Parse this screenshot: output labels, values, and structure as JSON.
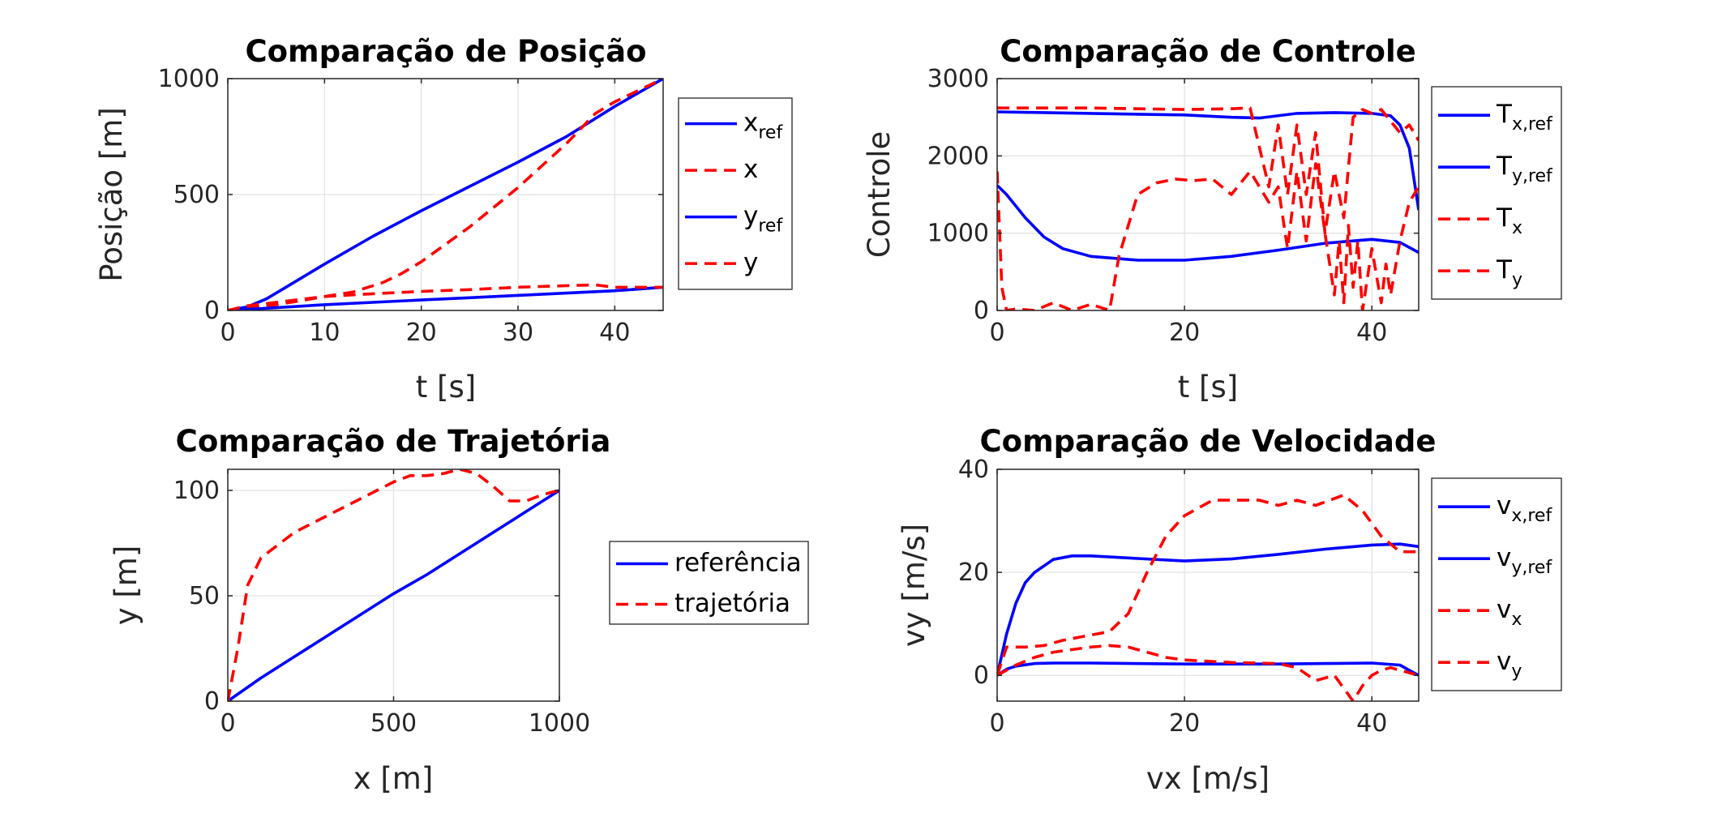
{
  "colors": {
    "reference": "#0000ff",
    "actual": "#ff0000",
    "grid": "#e3e3e3",
    "axis": "#262626"
  },
  "chart_data": [
    {
      "type": "line",
      "title": "Comparação de Posição",
      "xlabel": "t [s]",
      "ylabel": "Posição [m]",
      "xlim": [
        0,
        45
      ],
      "ylim": [
        0,
        1000
      ],
      "xticks": [
        0,
        10,
        20,
        30,
        40
      ],
      "yticks": [
        0,
        500,
        1000
      ],
      "grid": true,
      "legend_position": "outside-right",
      "series": [
        {
          "name": "x",
          "sub": "ref",
          "style": "solid",
          "color": "#0000ff",
          "x": [
            0,
            2,
            4,
            6,
            8,
            10,
            15,
            20,
            25,
            30,
            35,
            40,
            45
          ],
          "y": [
            0,
            15,
            50,
            100,
            150,
            200,
            320,
            430,
            535,
            640,
            750,
            880,
            1000
          ]
        },
        {
          "name": "x",
          "sub": "",
          "style": "dashed",
          "color": "#ff0000",
          "x": [
            0,
            2,
            5,
            8,
            10,
            13,
            16,
            18,
            20,
            25,
            30,
            35,
            38,
            40,
            45
          ],
          "y": [
            0,
            10,
            25,
            45,
            60,
            80,
            120,
            160,
            210,
            360,
            530,
            720,
            850,
            900,
            1000
          ]
        },
        {
          "name": "y",
          "sub": "ref",
          "style": "solid",
          "color": "#0000ff",
          "x": [
            0,
            5,
            10,
            15,
            20,
            25,
            30,
            35,
            40,
            45
          ],
          "y": [
            0,
            12,
            25,
            35,
            45,
            55,
            65,
            75,
            85,
            100
          ]
        },
        {
          "name": "y",
          "sub": "",
          "style": "dashed",
          "color": "#ff0000",
          "x": [
            0,
            2,
            5,
            10,
            15,
            20,
            25,
            30,
            35,
            38,
            40,
            45
          ],
          "y": [
            0,
            20,
            35,
            60,
            72,
            82,
            90,
            100,
            107,
            110,
            100,
            100
          ]
        }
      ]
    },
    {
      "type": "line",
      "title": "Comparação de Controle",
      "xlabel": "t [s]",
      "ylabel": "Controle",
      "xlim": [
        0,
        45
      ],
      "ylim": [
        0,
        3000
      ],
      "xticks": [
        0,
        20,
        40
      ],
      "yticks": [
        0,
        1000,
        2000,
        3000
      ],
      "grid": true,
      "legend_position": "outside-right",
      "series": [
        {
          "name": "T",
          "sub": "x,ref",
          "style": "solid",
          "color": "#0000ff",
          "x": [
            0,
            5,
            10,
            15,
            20,
            25,
            28,
            32,
            36,
            40,
            42,
            43,
            44,
            45
          ],
          "y": [
            2570,
            2560,
            2550,
            2540,
            2530,
            2500,
            2490,
            2550,
            2560,
            2550,
            2520,
            2400,
            2100,
            1300
          ]
        },
        {
          "name": "T",
          "sub": "y,ref",
          "style": "solid",
          "color": "#0000ff",
          "x": [
            0,
            1,
            3,
            5,
            7,
            10,
            15,
            20,
            25,
            30,
            35,
            40,
            43,
            45
          ],
          "y": [
            1620,
            1500,
            1200,
            950,
            800,
            700,
            650,
            650,
            700,
            780,
            870,
            920,
            880,
            750
          ]
        },
        {
          "name": "T",
          "sub": "x",
          "style": "dashed",
          "color": "#ff0000",
          "x": [
            0,
            5,
            10,
            15,
            20,
            25,
            27,
            29,
            30,
            31,
            32,
            33,
            34,
            35,
            36,
            37,
            38,
            39,
            40,
            41,
            42,
            43,
            44,
            45
          ],
          "y": [
            2620,
            2620,
            2620,
            2610,
            2600,
            2610,
            2620,
            1600,
            2400,
            1500,
            2400,
            1500,
            2300,
            1000,
            1800,
            1200,
            2500,
            2600,
            2550,
            2600,
            2450,
            2300,
            2400,
            2200
          ]
        },
        {
          "name": "T",
          "sub": "y",
          "style": "dashed",
          "color": "#ff0000",
          "x": [
            0,
            0.5,
            1,
            2,
            4,
            6,
            8,
            10,
            12,
            13,
            15,
            17,
            19,
            21,
            23,
            25,
            27,
            29,
            30,
            31,
            32,
            33,
            34,
            35,
            36,
            36.5,
            37,
            37.5,
            38,
            38.5,
            39,
            40,
            41,
            41.5,
            42,
            43,
            44,
            45
          ],
          "y": [
            1800,
            300,
            0,
            20,
            0,
            100,
            0,
            80,
            0,
            700,
            1500,
            1650,
            1700,
            1680,
            1700,
            1500,
            1800,
            1400,
            1600,
            800,
            1800,
            900,
            1900,
            1000,
            200,
            900,
            100,
            1100,
            300,
            900,
            0,
            800,
            100,
            600,
            200,
            900,
            1400,
            1600
          ]
        }
      ]
    },
    {
      "type": "line",
      "title": "Comparação de Trajetória",
      "xlabel": "x [m]",
      "ylabel": "y [m]",
      "xlim": [
        0,
        1000
      ],
      "ylim": [
        0,
        110
      ],
      "xticks": [
        0,
        500,
        1000
      ],
      "yticks": [
        0,
        50,
        100
      ],
      "grid": true,
      "legend_position": "outside-right",
      "series": [
        {
          "name": "referência",
          "sub": "",
          "style": "solid",
          "color": "#0000ff",
          "x": [
            0,
            100,
            200,
            300,
            400,
            500,
            600,
            700,
            800,
            900,
            1000
          ],
          "y": [
            0,
            11,
            21,
            31,
            41,
            51,
            60,
            70,
            80,
            90,
            100
          ]
        },
        {
          "name": "trajetória",
          "sub": "",
          "style": "dashed",
          "color": "#ff0000",
          "x": [
            0,
            30,
            60,
            100,
            150,
            200,
            300,
            400,
            500,
            550,
            600,
            650,
            700,
            750,
            800,
            850,
            900,
            950,
            1000
          ],
          "y": [
            0,
            25,
            55,
            68,
            74,
            80,
            88,
            96,
            104,
            107,
            107,
            108,
            110,
            108,
            102,
            95,
            95,
            98,
            100
          ]
        }
      ]
    },
    {
      "type": "line",
      "title": "Comparação de Velocidade",
      "xlabel": "vx [m/s]",
      "ylabel": "vy [m/s]",
      "xlim": [
        0,
        45
      ],
      "ylim": [
        -5,
        40
      ],
      "xticks": [
        0,
        20,
        40
      ],
      "yticks": [
        0,
        20,
        40
      ],
      "grid": true,
      "legend_position": "outside-right",
      "series": [
        {
          "name": "v",
          "sub": "x,ref",
          "style": "solid",
          "color": "#0000ff",
          "x": [
            0,
            1,
            2,
            3,
            4,
            6,
            8,
            10,
            15,
            20,
            25,
            30,
            35,
            40,
            43,
            45
          ],
          "y": [
            0,
            8,
            14,
            18,
            20,
            22.5,
            23.2,
            23.2,
            22.7,
            22.2,
            22.6,
            23.5,
            24.5,
            25.3,
            25.5,
            25
          ]
        },
        {
          "name": "v",
          "sub": "y,ref",
          "style": "solid",
          "color": "#0000ff",
          "x": [
            0,
            1,
            2,
            4,
            6,
            10,
            20,
            30,
            35,
            40,
            43,
            44,
            45
          ],
          "y": [
            0,
            1.2,
            1.8,
            2.3,
            2.4,
            2.4,
            2.2,
            2.2,
            2.3,
            2.4,
            2.0,
            1.0,
            0
          ]
        },
        {
          "name": "v",
          "sub": "x",
          "style": "dashed",
          "color": "#ff0000",
          "x": [
            0,
            1,
            3,
            5,
            7,
            9,
            12,
            14,
            16,
            18,
            20,
            23,
            26,
            28,
            30,
            32,
            34,
            37,
            39,
            41,
            43,
            45
          ],
          "y": [
            0,
            5.5,
            5.5,
            5.8,
            6.8,
            7.5,
            8.5,
            12,
            20,
            27,
            31,
            34,
            34,
            34,
            33,
            34,
            33,
            35,
            32,
            27,
            24,
            24
          ]
        },
        {
          "name": "v",
          "sub": "y",
          "style": "dashed",
          "color": "#ff0000",
          "x": [
            0,
            2,
            4,
            6,
            8,
            10,
            12,
            14,
            16,
            18,
            20,
            25,
            30,
            32,
            34,
            36,
            38,
            39,
            40,
            41,
            42,
            43,
            44,
            45
          ],
          "y": [
            0,
            2,
            3.5,
            4.5,
            5,
            5.5,
            5.8,
            5.5,
            4.5,
            3.5,
            3,
            2.5,
            2.3,
            1.5,
            -1,
            0,
            -5,
            -2,
            0,
            1,
            1.5,
            1,
            0.5,
            0
          ]
        }
      ]
    }
  ]
}
